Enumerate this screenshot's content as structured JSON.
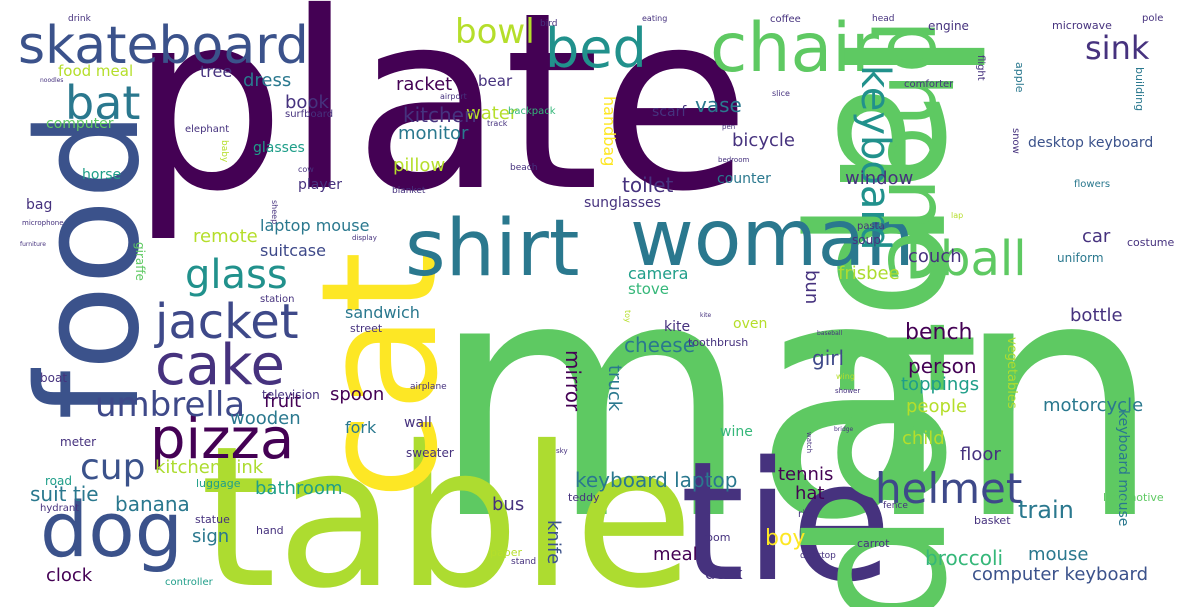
{
  "colors": {
    "purple": "#440154",
    "indigo": "#3b528b",
    "navy": "#46327e",
    "slate": "#3e4989",
    "teal": "#2a788e",
    "cyan": "#21918c",
    "green": "#1f9e89",
    "lightgreen": "#35b779",
    "lime": "#5ec962",
    "yellowgreen": "#addc30",
    "yellow": "#fde725",
    "olive": "#b5de2b"
  },
  "words": [
    {
      "text": "plate",
      "color": "purple"
    },
    {
      "text": "man",
      "color": "lime"
    },
    {
      "text": "table",
      "color": "yellowgreen"
    },
    {
      "text": "tie",
      "color": "navy"
    },
    {
      "text": "laptop",
      "color": "lime"
    },
    {
      "text": "food",
      "color": "indigo"
    },
    {
      "text": "cat",
      "color": "yellow"
    },
    {
      "text": "woman",
      "color": "teal"
    },
    {
      "text": "shirt",
      "color": "teal"
    },
    {
      "text": "chair",
      "color": "lime"
    },
    {
      "text": "phone",
      "color": "lime"
    },
    {
      "text": "dog",
      "color": "indigo"
    },
    {
      "text": "skateboard",
      "color": "indigo"
    },
    {
      "text": "bed",
      "color": "cyan"
    },
    {
      "text": "pizza",
      "color": "purple"
    },
    {
      "text": "cake",
      "color": "navy"
    },
    {
      "text": "jacket",
      "color": "slate"
    },
    {
      "text": "helmet",
      "color": "slate"
    },
    {
      "text": "ball",
      "color": "lime"
    },
    {
      "text": "keyboard",
      "color": "cyan"
    },
    {
      "text": "glass",
      "color": "cyan"
    },
    {
      "text": "bat",
      "color": "teal"
    },
    {
      "text": "umbrella",
      "color": "slate"
    },
    {
      "text": "cup",
      "color": "indigo"
    },
    {
      "text": "bowl",
      "color": "olive"
    },
    {
      "text": "sink",
      "color": "navy"
    },
    {
      "text": "broccoli",
      "color": "lightgreen"
    },
    {
      "text": "bench",
      "color": "purple"
    },
    {
      "text": "computer keyboard",
      "color": "indigo"
    },
    {
      "text": "keyboard laptop",
      "color": "teal"
    },
    {
      "text": "train",
      "color": "teal"
    },
    {
      "text": "boy",
      "color": "yellow"
    },
    {
      "text": "water",
      "color": "olive"
    },
    {
      "text": "kitchen",
      "color": "navy"
    },
    {
      "text": "monitor",
      "color": "teal"
    },
    {
      "text": "vase",
      "color": "teal"
    },
    {
      "text": "bicycle",
      "color": "navy"
    },
    {
      "text": "toilet",
      "color": "navy"
    },
    {
      "text": "pillow",
      "color": "olive"
    },
    {
      "text": "window",
      "color": "navy"
    },
    {
      "text": "couch",
      "color": "navy"
    },
    {
      "text": "car",
      "color": "navy"
    },
    {
      "text": "frisbee",
      "color": "yellowgreen"
    },
    {
      "text": "bottle",
      "color": "navy"
    },
    {
      "text": "person",
      "color": "purple"
    },
    {
      "text": "toppings",
      "color": "green"
    },
    {
      "text": "girl",
      "color": "slate"
    },
    {
      "text": "cheese",
      "color": "teal"
    },
    {
      "text": "people",
      "color": "olive"
    },
    {
      "text": "motorcycle",
      "color": "teal"
    },
    {
      "text": "child",
      "color": "olive"
    },
    {
      "text": "floor",
      "color": "navy"
    },
    {
      "text": "mouse",
      "color": "teal"
    },
    {
      "text": "desk",
      "color": "navy"
    },
    {
      "text": "meal",
      "color": "purple"
    },
    {
      "text": "clock",
      "color": "purple"
    },
    {
      "text": "banana",
      "color": "teal"
    },
    {
      "text": "suit tie",
      "color": "teal"
    },
    {
      "text": "sign",
      "color": "teal"
    },
    {
      "text": "bathroom",
      "color": "green"
    },
    {
      "text": "hat",
      "color": "purple"
    },
    {
      "text": "tennis",
      "color": "purple"
    },
    {
      "text": "bus",
      "color": "navy"
    },
    {
      "text": "kitchen sink",
      "color": "yellowgreen"
    },
    {
      "text": "wooden",
      "color": "teal"
    },
    {
      "text": "fruit",
      "color": "purple"
    },
    {
      "text": "spoon",
      "color": "purple"
    },
    {
      "text": "fork",
      "color": "teal"
    },
    {
      "text": "wall",
      "color": "navy"
    },
    {
      "text": "remote",
      "color": "olive"
    },
    {
      "text": "laptop mouse",
      "color": "teal"
    },
    {
      "text": "suitcase",
      "color": "slate"
    },
    {
      "text": "sandwich",
      "color": "teal"
    },
    {
      "text": "camera",
      "color": "green"
    },
    {
      "text": "stove",
      "color": "lightgreen"
    },
    {
      "text": "bun",
      "color": "navy"
    },
    {
      "text": "kite",
      "color": "navy"
    },
    {
      "text": "oven",
      "color": "olive"
    },
    {
      "text": "wine",
      "color": "lightgreen"
    },
    {
      "text": "knife",
      "color": "indigo"
    },
    {
      "text": "mirror",
      "color": "purple"
    },
    {
      "text": "truck",
      "color": "teal"
    },
    {
      "text": "racket",
      "color": "purple"
    },
    {
      "text": "bear",
      "color": "navy"
    },
    {
      "text": "handbag",
      "color": "yellow"
    },
    {
      "text": "scarf",
      "color": "navy"
    },
    {
      "text": "counter",
      "color": "teal"
    },
    {
      "text": "sunglasses",
      "color": "navy"
    },
    {
      "text": "player",
      "color": "navy"
    },
    {
      "text": "book",
      "color": "navy"
    },
    {
      "text": "dress",
      "color": "teal"
    },
    {
      "text": "tree",
      "color": "navy"
    },
    {
      "text": "food meal",
      "color": "olive"
    },
    {
      "text": "computer",
      "color": "lime"
    },
    {
      "text": "glasses",
      "color": "green"
    },
    {
      "text": "horse",
      "color": "green"
    },
    {
      "text": "bag",
      "color": "navy"
    },
    {
      "text": "elephant",
      "color": "navy"
    },
    {
      "text": "television",
      "color": "navy"
    },
    {
      "text": "giraffe",
      "color": "lime"
    },
    {
      "text": "street",
      "color": "navy"
    },
    {
      "text": "station",
      "color": "navy"
    },
    {
      "text": "meter",
      "color": "navy"
    },
    {
      "text": "road",
      "color": "green"
    },
    {
      "text": "luggage",
      "color": "green"
    },
    {
      "text": "hydrant",
      "color": "navy"
    },
    {
      "text": "statue",
      "color": "navy"
    },
    {
      "text": "hand",
      "color": "navy"
    },
    {
      "text": "room",
      "color": "navy"
    },
    {
      "text": "paper",
      "color": "olive"
    },
    {
      "text": "stand",
      "color": "navy"
    },
    {
      "text": "controller",
      "color": "green"
    },
    {
      "text": "teddy",
      "color": "navy"
    },
    {
      "text": "sweater",
      "color": "navy"
    },
    {
      "text": "boat",
      "color": "navy"
    },
    {
      "text": "airplane",
      "color": "navy"
    },
    {
      "text": "toothbrush",
      "color": "navy"
    },
    {
      "text": "desktop keyboard",
      "color": "indigo"
    },
    {
      "text": "keyboard mouse",
      "color": "teal"
    },
    {
      "text": "vegetables",
      "color": "yellowgreen"
    },
    {
      "text": "locomotive",
      "color": "lime"
    },
    {
      "text": "basket",
      "color": "navy"
    },
    {
      "text": "carrot",
      "color": "navy"
    },
    {
      "text": "rice",
      "color": "navy"
    },
    {
      "text": "fence",
      "color": "navy"
    },
    {
      "text": "desktop",
      "color": "navy"
    },
    {
      "text": "uniform",
      "color": "teal"
    },
    {
      "text": "costume",
      "color": "navy"
    },
    {
      "text": "soup",
      "color": "navy"
    },
    {
      "text": "pasta",
      "color": "navy"
    },
    {
      "text": "flowers",
      "color": "teal"
    },
    {
      "text": "building",
      "color": "teal"
    },
    {
      "text": "apple",
      "color": "teal"
    },
    {
      "text": "engine",
      "color": "navy"
    },
    {
      "text": "microwave",
      "color": "navy"
    },
    {
      "text": "pole",
      "color": "navy"
    },
    {
      "text": "coffee",
      "color": "navy"
    },
    {
      "text": "head",
      "color": "navy"
    },
    {
      "text": "comforter",
      "color": "navy"
    },
    {
      "text": "flight",
      "color": "navy"
    },
    {
      "text": "snow",
      "color": "navy"
    },
    {
      "text": "slice",
      "color": "navy"
    },
    {
      "text": "pen",
      "color": "navy"
    },
    {
      "text": "bedroom",
      "color": "navy"
    },
    {
      "text": "backpack",
      "color": "lightgreen"
    },
    {
      "text": "track",
      "color": "navy"
    },
    {
      "text": "airport",
      "color": "navy"
    },
    {
      "text": "surfboard",
      "color": "navy"
    },
    {
      "text": "baby",
      "color": "olive"
    },
    {
      "text": "cow",
      "color": "navy"
    },
    {
      "text": "sheep",
      "color": "navy"
    },
    {
      "text": "blanket",
      "color": "navy"
    },
    {
      "text": "beach",
      "color": "navy"
    },
    {
      "text": "drink",
      "color": "navy"
    },
    {
      "text": "bird",
      "color": "navy"
    },
    {
      "text": "eating",
      "color": "navy"
    },
    {
      "text": "microphone",
      "color": "navy"
    },
    {
      "text": "furniture",
      "color": "navy"
    },
    {
      "text": "display",
      "color": "navy"
    },
    {
      "text": "sky",
      "color": "navy"
    },
    {
      "text": "toy",
      "color": "olive"
    },
    {
      "text": "shower",
      "color": "navy"
    },
    {
      "text": "watch",
      "color": "navy"
    },
    {
      "text": "bridge",
      "color": "navy"
    },
    {
      "text": "baseball",
      "color": "navy"
    },
    {
      "text": "wing",
      "color": "olive"
    },
    {
      "text": "lap",
      "color": "olive"
    },
    {
      "text": "kite",
      "color": "navy"
    },
    {
      "text": "noodles",
      "color": "navy"
    }
  ]
}
